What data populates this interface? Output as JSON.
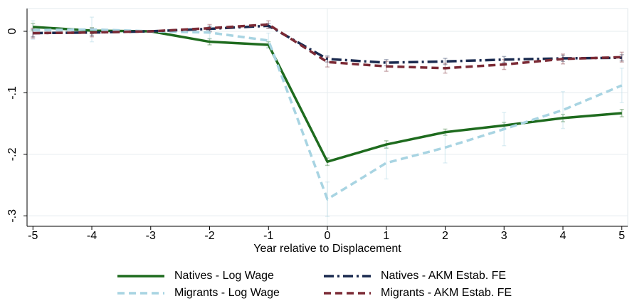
{
  "chart_data": {
    "type": "line",
    "xlabel": "Year relative to Displacement",
    "x": [
      -5,
      -4,
      -3,
      -2,
      -1,
      0,
      1,
      2,
      3,
      4,
      5
    ],
    "xlim": [
      -5.1,
      5.1
    ],
    "xticks": [
      -5,
      -4,
      -3,
      -2,
      -1,
      0,
      1,
      2,
      3,
      4,
      5
    ],
    "ylim": [
      -0.317,
      0.037
    ],
    "yticks": [
      0,
      {
        "value": -0.1,
        "label": "-.1"
      },
      {
        "value": -0.2,
        "label": "-.2"
      },
      {
        "value": -0.3,
        "label": "-.3"
      }
    ],
    "grid": true,
    "xline": 0,
    "series": [
      {
        "name": "Natives - Log Wage",
        "color": "#1e6b1e",
        "dash": "solid",
        "values": [
          0.007,
          0.001,
          0,
          -0.017,
          -0.022,
          -0.212,
          -0.184,
          -0.164,
          -0.153,
          -0.141,
          -0.133
        ],
        "errors": [
          0.006,
          0.005,
          0,
          0.005,
          0.005,
          0.006,
          0.006,
          0.005,
          0.005,
          0.006,
          0.006
        ]
      },
      {
        "name": "Migrants - Log Wage",
        "color": "#a8d4e2",
        "dash": "dashed",
        "values": [
          0.002,
          0.003,
          0,
          -0.002,
          -0.015,
          -0.273,
          -0.214,
          -0.189,
          -0.159,
          -0.128,
          -0.088
        ],
        "errors": [
          0.015,
          0.02,
          0,
          0.01,
          0.012,
          0.028,
          0.026,
          0.025,
          0.027,
          0.03,
          0.028
        ]
      },
      {
        "name": "Natives - AKM Estab. FE",
        "color": "#1a2a4f",
        "dash": "dashdot",
        "values": [
          -0.003,
          -0.002,
          0,
          0.004,
          0.009,
          -0.045,
          -0.051,
          -0.049,
          -0.046,
          -0.044,
          -0.043
        ],
        "errors": [
          0.006,
          0.005,
          0,
          0.004,
          0.004,
          0.005,
          0.005,
          0.005,
          0.005,
          0.005,
          0.005
        ]
      },
      {
        "name": "Migrants - AKM Estab. FE",
        "color": "#7b2a35",
        "dash": "dashed",
        "values": [
          -0.003,
          -0.002,
          0,
          0.005,
          0.011,
          -0.05,
          -0.057,
          -0.06,
          -0.054,
          -0.045,
          -0.042
        ],
        "errors": [
          0.008,
          0.007,
          0,
          0.006,
          0.006,
          0.008,
          0.008,
          0.008,
          0.008,
          0.008,
          0.008
        ]
      }
    ]
  }
}
